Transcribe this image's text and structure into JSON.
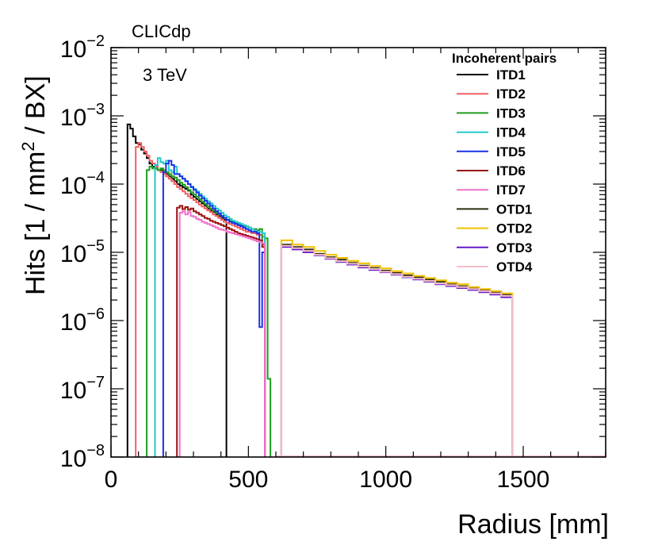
{
  "chart_data": {
    "type": "line",
    "style": "step-histogram",
    "title": "",
    "label_top": "CLICdp",
    "annotation": "3 TeV",
    "xlabel": "Radius [mm]",
    "ylabel": "Hits [1 / mm² / BX]",
    "ylabel_parts": {
      "before": "Hits [1 / mm",
      "sup": "2",
      "after": " / BX]"
    },
    "xscale": "linear",
    "yscale": "log",
    "xlim": [
      0,
      1800
    ],
    "ylim": [
      1e-08,
      0.01
    ],
    "x_ticks": [
      {
        "value": 0,
        "label": "0"
      },
      {
        "value": 500,
        "label": "500"
      },
      {
        "value": 1000,
        "label": "1000"
      },
      {
        "value": 1500,
        "label": "1500"
      }
    ],
    "y_ticks": [
      {
        "exp": -8,
        "base": "10",
        "sup": "−8"
      },
      {
        "exp": -7,
        "base": "10",
        "sup": "−7"
      },
      {
        "exp": -6,
        "base": "10",
        "sup": "−6"
      },
      {
        "exp": -5,
        "base": "10",
        "sup": "−5"
      },
      {
        "exp": -4,
        "base": "10",
        "sup": "−4"
      },
      {
        "exp": -3,
        "base": "10",
        "sup": "−3"
      },
      {
        "exp": -2,
        "base": "10",
        "sup": "−2"
      }
    ],
    "legend": {
      "title": "Incoherent pairs",
      "position": "top-right"
    },
    "series": [
      {
        "name": "ITD1",
        "color": "#000000",
        "x": [
          60,
          70,
          80,
          90,
          100,
          110,
          120,
          130,
          140,
          150,
          160,
          170,
          180,
          190,
          200,
          210,
          220,
          230,
          240,
          250,
          260,
          270,
          280,
          290,
          300,
          310,
          320,
          330,
          340,
          350,
          360,
          370,
          380,
          390,
          400,
          410
        ],
        "y": [
          0.00075,
          0.00065,
          0.0005,
          0.0004,
          0.00038,
          0.00032,
          0.00028,
          0.00024,
          0.0002,
          0.00018,
          0.00017,
          0.00016,
          0.00016,
          0.00015,
          0.00014,
          0.00013,
          0.00012,
          0.00011,
          0.0001,
          9.5e-05,
          9e-05,
          8.5e-05,
          8e-05,
          7e-05,
          6.5e-05,
          6e-05,
          5.6e-05,
          5.2e-05,
          4.8e-05,
          4.4e-05,
          4.1e-05,
          3.9e-05,
          3.6e-05,
          3.4e-05,
          3.2e-05,
          3e-05
        ]
      },
      {
        "name": "ITD2",
        "color": "#f06060",
        "x": [
          90,
          100,
          110,
          120,
          130,
          140,
          150,
          160,
          170,
          180,
          190,
          200,
          210,
          220,
          230,
          240,
          250,
          260,
          270,
          280,
          290,
          300,
          310,
          320,
          330,
          340,
          350,
          360,
          370,
          380,
          390,
          400,
          410,
          420,
          430,
          440,
          450,
          460,
          470,
          480,
          490,
          500,
          510,
          520,
          530,
          540,
          550
        ],
        "y": [
          0.00035,
          0.0004,
          0.00035,
          0.0003,
          0.00026,
          0.00022,
          0.0002,
          0.00018,
          0.00016,
          0.00015,
          0.00014,
          0.00013,
          0.00012,
          0.00011,
          0.0001,
          9e-05,
          8.5e-05,
          7.8e-05,
          7.2e-05,
          6.6e-05,
          6.2e-05,
          5.8e-05,
          5.4e-05,
          5e-05,
          4.7e-05,
          4.4e-05,
          4.1e-05,
          3.9e-05,
          3.6e-05,
          3.4e-05,
          3.2e-05,
          3e-05,
          2.8e-05,
          2.7e-05,
          2.6e-05,
          2.5e-05,
          2.4e-05,
          2.3e-05,
          2.2e-05,
          2.1e-05,
          2e-05,
          2e-05,
          1.9e-05,
          1.9e-05,
          1.8e-05,
          1.8e-05,
          1.7e-05
        ]
      },
      {
        "name": "ITD3",
        "color": "#1e9e1e",
        "x": [
          130,
          140,
          150,
          160,
          170,
          180,
          190,
          200,
          210,
          220,
          230,
          240,
          250,
          260,
          270,
          280,
          290,
          300,
          310,
          320,
          330,
          340,
          350,
          360,
          370,
          380,
          390,
          400,
          410,
          420,
          430,
          440,
          450,
          460,
          470,
          480,
          490,
          500,
          510,
          520,
          530,
          540,
          550,
          560,
          570
        ],
        "y": [
          0.00016,
          0.00018,
          0.00017,
          0.00017,
          0.00016,
          0.00017,
          0.00016,
          0.00015,
          0.00014,
          0.00013,
          0.000125,
          0.000115,
          0.000105,
          9.8e-05,
          9e-05,
          8.2e-05,
          7.6e-05,
          7e-05,
          6.5e-05,
          6e-05,
          5.5e-05,
          5.1e-05,
          4.7e-05,
          4.4e-05,
          4.1e-05,
          3.8e-05,
          3.6e-05,
          3.4e-05,
          3.2e-05,
          3e-05,
          2.9e-05,
          2.8e-05,
          2.7e-05,
          2.6e-05,
          2.5e-05,
          2.4e-05,
          2.4e-05,
          2.3e-05,
          2.2e-05,
          2.2e-05,
          2.1e-05,
          2.2e-05,
          1.3e-05,
          1.6e-05,
          1.4e-07
        ]
      },
      {
        "name": "ITD4",
        "color": "#22c8c8",
        "x": [
          160,
          170,
          180,
          190,
          200,
          210,
          220,
          230,
          240,
          250,
          260,
          270,
          280,
          290,
          300,
          310,
          320,
          330,
          340,
          350,
          360,
          370,
          380,
          390,
          400,
          410,
          420,
          430,
          440,
          450,
          460,
          470,
          480,
          490,
          500,
          510,
          520,
          530,
          540,
          550
        ],
        "y": [
          0.00019,
          0.00024,
          0.00021,
          0.0002,
          0.00022,
          0.00016,
          0.00015,
          0.00018,
          0.00014,
          0.00013,
          0.00012,
          0.00011,
          0.0001,
          9.2e-05,
          8.5e-05,
          7.8e-05,
          7.2e-05,
          6.6e-05,
          6.1e-05,
          5.6e-05,
          5.2e-05,
          4.8e-05,
          4.4e-05,
          4.1e-05,
          3.8e-05,
          3.5e-05,
          3.3e-05,
          3.1e-05,
          2.9e-05,
          2.8e-05,
          2.7e-05,
          2.6e-05,
          2.5e-05,
          2.4e-05,
          2.3e-05,
          2.2e-05,
          2.1e-05,
          2e-05,
          2e-05,
          1.9e-05
        ]
      },
      {
        "name": "ITD5",
        "color": "#1a32e6",
        "x": [
          190,
          200,
          210,
          220,
          230,
          240,
          250,
          260,
          270,
          280,
          290,
          300,
          310,
          320,
          330,
          340,
          350,
          360,
          370,
          380,
          390,
          400,
          410,
          420,
          430,
          440,
          450,
          460,
          470,
          480,
          490,
          500,
          510,
          520,
          530,
          540,
          550
        ],
        "y": [
          0.00015,
          0.0002,
          0.00022,
          0.00019,
          0.00014,
          0.00014,
          0.00013,
          0.00012,
          0.00011,
          0.0001,
          9e-05,
          8.2e-05,
          7.5e-05,
          6.8e-05,
          6.2e-05,
          5.7e-05,
          5.2e-05,
          4.8e-05,
          4.4e-05,
          4e-05,
          3.7e-05,
          3.4e-05,
          3.2e-05,
          3e-05,
          2.8e-05,
          2.7e-05,
          2.6e-05,
          2.5e-05,
          2.4e-05,
          2.3e-05,
          2.2e-05,
          2.1e-05,
          2e-05,
          2e-05,
          1.9e-05,
          8e-07,
          1e-05
        ]
      },
      {
        "name": "ITD6",
        "color": "#9a1010",
        "x": [
          240,
          250,
          260,
          270,
          280,
          290,
          300,
          310,
          320,
          330,
          340,
          350,
          360,
          370,
          380,
          390,
          400,
          410,
          420,
          430,
          440,
          450,
          460,
          470,
          480,
          490,
          500,
          510,
          520,
          530,
          540,
          550
        ],
        "y": [
          4.5e-05,
          4.8e-05,
          4.3e-05,
          4.6e-05,
          4.2e-05,
          4.4e-05,
          4e-05,
          3.8e-05,
          3.6e-05,
          3.4e-05,
          3.2e-05,
          3.1e-05,
          2.9e-05,
          2.8e-05,
          2.7e-05,
          2.6e-05,
          2.5e-05,
          2.4e-05,
          2.3e-05,
          2.2e-05,
          2.1e-05,
          2e-05,
          1.9e-05,
          1.85e-05,
          1.8e-05,
          1.75e-05,
          1.7e-05,
          1.65e-05,
          1.6e-05,
          1.55e-05,
          1.5e-05,
          1.2e-05
        ]
      },
      {
        "name": "ITD7",
        "color": "#f070c8",
        "x": [
          250,
          260,
          270,
          280,
          290,
          300,
          310,
          320,
          330,
          340,
          350,
          360,
          370,
          380,
          390,
          400,
          410,
          420,
          430,
          440,
          450,
          460,
          470,
          480,
          490,
          500,
          510,
          520,
          530,
          540,
          550
        ],
        "y": [
          3.8e-05,
          4e-05,
          3.6e-05,
          3.9e-05,
          3.4e-05,
          3.3e-05,
          3.1e-05,
          3e-05,
          2.8e-05,
          2.7e-05,
          2.6e-05,
          2.5e-05,
          2.4e-05,
          2.3e-05,
          2.2e-05,
          2.15e-05,
          2.1e-05,
          2e-05,
          1.95e-05,
          1.9e-05,
          1.85e-05,
          1.8e-05,
          1.75e-05,
          1.7e-05,
          1.65e-05,
          1.6e-05,
          1.55e-05,
          1.5e-05,
          1.45e-05,
          1.4e-05,
          1.35e-05
        ]
      },
      {
        "name": "OTD1",
        "color": "#2c2c10",
        "x": [
          620,
          660,
          700,
          740,
          780,
          820,
          860,
          900,
          940,
          980,
          1020,
          1060,
          1100,
          1140,
          1180,
          1220,
          1260,
          1300,
          1340,
          1380,
          1420
        ],
        "y": [
          1.3e-05,
          1.2e-05,
          1.1e-05,
          9.5e-06,
          8.5e-06,
          7.8e-06,
          7e-06,
          6.4e-06,
          5.9e-06,
          5.4e-06,
          5e-06,
          4.6e-06,
          4.3e-06,
          4e-06,
          3.7e-06,
          3.4e-06,
          3.2e-06,
          3e-06,
          2.8e-06,
          2.6e-06,
          2.4e-06
        ]
      },
      {
        "name": "OTD2",
        "color": "#f0c000",
        "x": [
          620,
          660,
          700,
          740,
          780,
          820,
          860,
          900,
          940,
          980,
          1020,
          1060,
          1100,
          1140,
          1180,
          1220,
          1260,
          1300,
          1340,
          1380,
          1420
        ],
        "y": [
          1.5e-05,
          1.3e-05,
          1.2e-05,
          1.05e-05,
          9.2e-06,
          8.3e-06,
          7.5e-06,
          6.9e-06,
          6.3e-06,
          5.8e-06,
          5.3e-06,
          4.9e-06,
          4.5e-06,
          4.2e-06,
          3.9e-06,
          3.6e-06,
          3.4e-06,
          3.1e-06,
          2.9e-06,
          2.7e-06,
          2.5e-06
        ]
      },
      {
        "name": "OTD3",
        "color": "#6418c8",
        "x": [
          620,
          660,
          700,
          740,
          780,
          820,
          860,
          900,
          940,
          980,
          1020,
          1060,
          1100,
          1140,
          1180,
          1220,
          1260,
          1300,
          1340,
          1380,
          1420
        ],
        "y": [
          1.2e-05,
          1.1e-05,
          1e-05,
          9e-06,
          8e-06,
          7.2e-06,
          6.6e-06,
          6e-06,
          5.5e-06,
          5.1e-06,
          4.7e-06,
          4.3e-06,
          4e-06,
          3.7e-06,
          3.4e-06,
          3.2e-06,
          3e-06,
          2.8e-06,
          2.6e-06,
          2.4e-06,
          2.2e-06
        ]
      },
      {
        "name": "OTD4",
        "color": "#f5c0c8",
        "x": [
          620,
          660,
          700,
          740,
          780,
          820,
          860,
          900,
          940,
          980,
          1020,
          1060,
          1100,
          1140,
          1180,
          1220,
          1260,
          1300,
          1340,
          1380,
          1420
        ],
        "y": [
          1.25e-05,
          1.15e-05,
          1.05e-05,
          9.2e-06,
          8.2e-06,
          7.4e-06,
          6.8e-06,
          6.2e-06,
          5.7e-06,
          5.2e-06,
          4.8e-06,
          4.4e-06,
          4.1e-06,
          3.8e-06,
          3.5e-06,
          3.3e-06,
          3.1e-06,
          2.9e-06,
          2.7e-06,
          2.5e-06,
          2.3e-06
        ]
      }
    ]
  }
}
